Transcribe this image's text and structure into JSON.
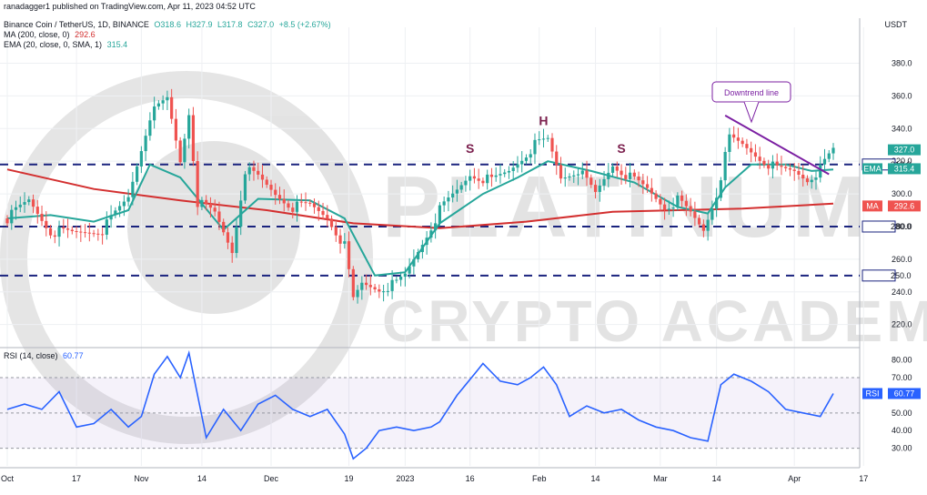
{
  "header": {
    "publisher": "ranadagger1 published on TradingView.com, Apr 11, 2023 04:52 UTC",
    "symbol": "Binance Coin / TetherUS, 1D, BINANCE",
    "o": "O318.6",
    "h": "H327.9",
    "l": "L317.8",
    "c": "C327.0",
    "chg": "+8.5 (+2.67%)",
    "ma_label": "MA (200, close, 0)",
    "ma_value": "292.6",
    "ema_label": "EMA (20, close, 0, SMA, 1)",
    "ema_value": "315.4",
    "currency": "USDT"
  },
  "colors": {
    "up": "#26a69a",
    "down": "#ef5350",
    "ma": "#d32f2f",
    "ema": "#26a69a",
    "rsi": "#2962ff",
    "trend": "#7b1fa2",
    "dash": "#1a237e"
  },
  "chart_data": [
    {
      "type": "candlestick",
      "price_ticks": [
        "380.0",
        "360.0",
        "340.0",
        "320.0",
        "300.0",
        "280.0",
        "260.0",
        "240.0",
        "220.0"
      ],
      "ylim": [
        207,
        402
      ],
      "x_ticks": [
        "Oct",
        "17",
        "Nov",
        "14",
        "Dec",
        "19",
        "2023",
        "16",
        "Feb",
        "14",
        "Mar",
        "14",
        "Apr",
        "17"
      ],
      "x_tick_days": [
        0,
        16,
        31,
        45,
        61,
        79,
        92,
        107,
        123,
        136,
        151,
        164,
        182,
        198
      ],
      "last_day": 191,
      "levels": [
        {
          "label": "318.0",
          "value": 318
        },
        {
          "label": "280.0",
          "value": 280
        },
        {
          "label": "250.0",
          "value": 250
        }
      ],
      "price_badges": [
        {
          "tag": "",
          "label": "327.0",
          "value": 327.0,
          "color": "#26a69a"
        },
        {
          "tag": "EMA",
          "label": "315.4",
          "value": 315.4,
          "color": "#26a69a"
        },
        {
          "tag": "MA",
          "label": "292.6",
          "value": 292.6,
          "color": "#ef5350"
        }
      ],
      "annotations": [
        {
          "text": "S",
          "day": 107,
          "value": 325
        },
        {
          "text": "H",
          "day": 124,
          "value": 342
        },
        {
          "text": "S",
          "day": 142,
          "value": 325
        }
      ],
      "callout": "Downtrend line",
      "trendline": [
        {
          "day": 166,
          "value": 348
        },
        {
          "day": 190,
          "value": 312
        }
      ],
      "ma200_points": [
        [
          0,
          315
        ],
        [
          20,
          303
        ],
        [
          40,
          296
        ],
        [
          60,
          290
        ],
        [
          80,
          282
        ],
        [
          100,
          279
        ],
        [
          120,
          283
        ],
        [
          140,
          289
        ],
        [
          155,
          290
        ],
        [
          170,
          291
        ],
        [
          191,
          294
        ]
      ],
      "ema20_points": [
        [
          0,
          285
        ],
        [
          10,
          287
        ],
        [
          20,
          283
        ],
        [
          28,
          290
        ],
        [
          33,
          318
        ],
        [
          40,
          310
        ],
        [
          50,
          278
        ],
        [
          58,
          297
        ],
        [
          70,
          296
        ],
        [
          78,
          285
        ],
        [
          85,
          250
        ],
        [
          92,
          252
        ],
        [
          100,
          282
        ],
        [
          110,
          300
        ],
        [
          118,
          310
        ],
        [
          125,
          320
        ],
        [
          135,
          314
        ],
        [
          145,
          307
        ],
        [
          155,
          292
        ],
        [
          162,
          288
        ],
        [
          166,
          304
        ],
        [
          172,
          318
        ],
        [
          180,
          318
        ],
        [
          186,
          314
        ],
        [
          191,
          315
        ]
      ],
      "price_points": [
        [
          0,
          285
        ],
        [
          5,
          296
        ],
        [
          10,
          277
        ],
        [
          15,
          276
        ],
        [
          22,
          278
        ],
        [
          28,
          298
        ],
        [
          33,
          348
        ],
        [
          37,
          358
        ],
        [
          40,
          320
        ],
        [
          42,
          350
        ],
        [
          44,
          295
        ],
        [
          48,
          288
        ],
        [
          52,
          265
        ],
        [
          55,
          315
        ],
        [
          58,
          310
        ],
        [
          62,
          300
        ],
        [
          66,
          292
        ],
        [
          70,
          293
        ],
        [
          74,
          286
        ],
        [
          78,
          268
        ],
        [
          80,
          235
        ],
        [
          82,
          245
        ],
        [
          86,
          242
        ],
        [
          90,
          245
        ],
        [
          92,
          250
        ],
        [
          96,
          270
        ],
        [
          100,
          290
        ],
        [
          104,
          302
        ],
        [
          107,
          312
        ],
        [
          112,
          308
        ],
        [
          116,
          314
        ],
        [
          119,
          322
        ],
        [
          122,
          330
        ],
        [
          125,
          333
        ],
        [
          128,
          310
        ],
        [
          132,
          315
        ],
        [
          136,
          300
        ],
        [
          140,
          318
        ],
        [
          144,
          310
        ],
        [
          148,
          303
        ],
        [
          152,
          292
        ],
        [
          155,
          296
        ],
        [
          158,
          288
        ],
        [
          161,
          278
        ],
        [
          164,
          300
        ],
        [
          167,
          334
        ],
        [
          170,
          330
        ],
        [
          174,
          322
        ],
        [
          178,
          315
        ],
        [
          182,
          314
        ],
        [
          185,
          309
        ],
        [
          188,
          315
        ],
        [
          191,
          327
        ]
      ]
    },
    {
      "type": "line",
      "label": "RSI (14, close)",
      "value": "60.77",
      "ticks": [
        "80.00",
        "70.00",
        "60.00",
        "50.00",
        "40.00",
        "30.00"
      ],
      "ylim": [
        20,
        86
      ],
      "band": [
        30,
        70
      ],
      "points": [
        [
          0,
          52
        ],
        [
          4,
          55
        ],
        [
          8,
          52
        ],
        [
          12,
          62
        ],
        [
          16,
          42
        ],
        [
          20,
          44
        ],
        [
          24,
          52
        ],
        [
          28,
          42
        ],
        [
          31,
          48
        ],
        [
          34,
          72
        ],
        [
          37,
          82
        ],
        [
          40,
          70
        ],
        [
          42,
          84
        ],
        [
          46,
          36
        ],
        [
          50,
          52
        ],
        [
          54,
          40
        ],
        [
          58,
          55
        ],
        [
          62,
          60
        ],
        [
          66,
          52
        ],
        [
          70,
          48
        ],
        [
          74,
          52
        ],
        [
          78,
          38
        ],
        [
          80,
          24
        ],
        [
          83,
          30
        ],
        [
          86,
          40
        ],
        [
          90,
          42
        ],
        [
          94,
          40
        ],
        [
          98,
          42
        ],
        [
          100,
          45
        ],
        [
          104,
          60
        ],
        [
          108,
          72
        ],
        [
          110,
          78
        ],
        [
          114,
          68
        ],
        [
          118,
          66
        ],
        [
          121,
          70
        ],
        [
          124,
          76
        ],
        [
          127,
          66
        ],
        [
          130,
          48
        ],
        [
          134,
          54
        ],
        [
          138,
          50
        ],
        [
          142,
          52
        ],
        [
          146,
          46
        ],
        [
          150,
          42
        ],
        [
          154,
          40
        ],
        [
          158,
          36
        ],
        [
          162,
          34
        ],
        [
          165,
          66
        ],
        [
          168,
          72
        ],
        [
          172,
          68
        ],
        [
          176,
          62
        ],
        [
          180,
          52
        ],
        [
          184,
          50
        ],
        [
          188,
          48
        ],
        [
          191,
          61
        ]
      ]
    }
  ],
  "watermark": "PLATINUM CRYPTO ACADEMY"
}
